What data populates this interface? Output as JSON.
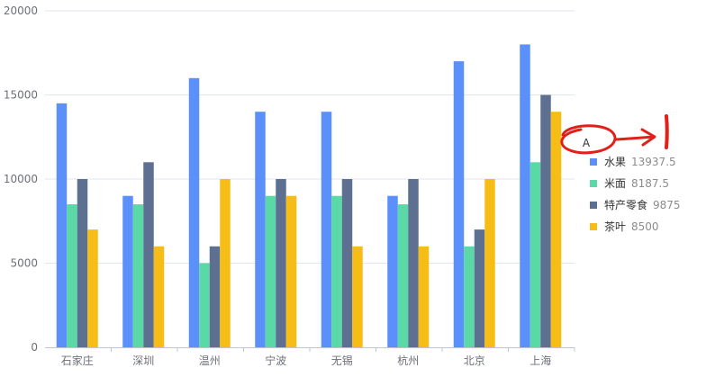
{
  "chart_data": {
    "type": "bar",
    "categories": [
      "石家庄",
      "深圳",
      "温州",
      "宁波",
      "无锡",
      "杭州",
      "北京",
      "上海"
    ],
    "series": [
      {
        "name": "水果",
        "values": [
          14500,
          9000,
          16000,
          14000,
          14000,
          9000,
          17000,
          18000
        ],
        "color": "#5b8ff9"
      },
      {
        "name": "米面",
        "values": [
          8500,
          8500,
          5000,
          9000,
          9000,
          8500,
          6000,
          11000
        ],
        "color": "#5ad8a6"
      },
      {
        "name": "特产零食",
        "values": [
          10000,
          11000,
          6000,
          10000,
          10000,
          10000,
          7000,
          15000
        ],
        "color": "#5d7092"
      },
      {
        "name": "茶叶",
        "values": [
          7000,
          6000,
          10000,
          9000,
          6000,
          6000,
          10000,
          14000
        ],
        "color": "#f6bd16"
      }
    ],
    "yticks": [
      0,
      5000,
      10000,
      15000,
      20000
    ],
    "ylim": [
      0,
      20000
    ],
    "grid": true,
    "legend": {
      "placement": "right",
      "entries": [
        {
          "name": "水果",
          "value": "13937.5"
        },
        {
          "name": "米面",
          "value": "8187.5"
        },
        {
          "name": "特产零食",
          "value": "9875"
        },
        {
          "name": "茶叶",
          "value": "8500"
        }
      ]
    },
    "annotation": {
      "text": "A",
      "color": "#e0201b"
    }
  }
}
